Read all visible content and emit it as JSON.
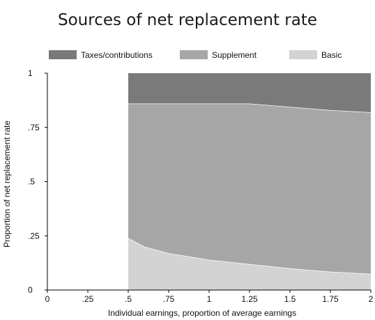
{
  "chart_data": {
    "type": "area",
    "title": "Sources of net replacement rate",
    "xlabel": "Individual earnings, proportion of average earnings",
    "ylabel": "Proportion of net replacement rate",
    "xlim": [
      0,
      2
    ],
    "ylim": [
      0,
      1
    ],
    "x_ticks": [
      "0",
      ".25",
      ".5",
      ".75",
      "1",
      "1.25",
      "1.5",
      "1.75",
      "2"
    ],
    "y_ticks": [
      "0",
      ".25",
      ".5",
      ".75",
      "1"
    ],
    "legend_position": "top",
    "stacked": true,
    "x": [
      0.5,
      0.6,
      0.75,
      1.0,
      1.25,
      1.5,
      1.75,
      2.0
    ],
    "series": [
      {
        "name": "Basic",
        "color": "#d3d3d3",
        "values": [
          0.24,
          0.2,
          0.17,
          0.14,
          0.12,
          0.1,
          0.085,
          0.075
        ]
      },
      {
        "name": "Supplement",
        "color": "#a6a6a6",
        "values": [
          0.62,
          0.66,
          0.69,
          0.72,
          0.74,
          0.745,
          0.745,
          0.745
        ]
      },
      {
        "name": "Taxes/contributions",
        "color": "#7a7a7a",
        "values": [
          0.14,
          0.14,
          0.14,
          0.14,
          0.14,
          0.155,
          0.17,
          0.18
        ]
      }
    ],
    "legend_order": [
      "Taxes/contributions",
      "Supplement",
      "Basic"
    ]
  }
}
